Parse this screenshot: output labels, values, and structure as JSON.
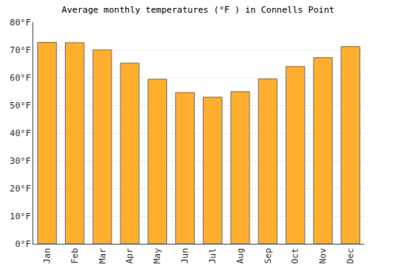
{
  "chart_data": {
    "type": "bar",
    "title": "Average monthly temperatures (°F ) in Connells Point",
    "categories": [
      "Jan",
      "Feb",
      "Mar",
      "Apr",
      "May",
      "Jun",
      "Jul",
      "Aug",
      "Sep",
      "Oct",
      "Nov",
      "Dec"
    ],
    "values": [
      72.7,
      72.6,
      70.0,
      65.2,
      59.4,
      54.6,
      52.9,
      54.9,
      59.5,
      64.0,
      67.2,
      71.2
    ],
    "color": "#ffae2e",
    "ylim": [
      0,
      80
    ],
    "yticks": [
      {
        "value": 0,
        "label": "0°F"
      },
      {
        "value": 10,
        "label": "10°F"
      },
      {
        "value": 20,
        "label": "20°F"
      },
      {
        "value": 30,
        "label": "30°F"
      },
      {
        "value": 40,
        "label": "40°F"
      },
      {
        "value": 50,
        "label": "50°F"
      },
      {
        "value": 60,
        "label": "60°F"
      },
      {
        "value": 70,
        "label": "70°F"
      },
      {
        "value": 80,
        "label": "80°F"
      }
    ],
    "grid": true
  }
}
